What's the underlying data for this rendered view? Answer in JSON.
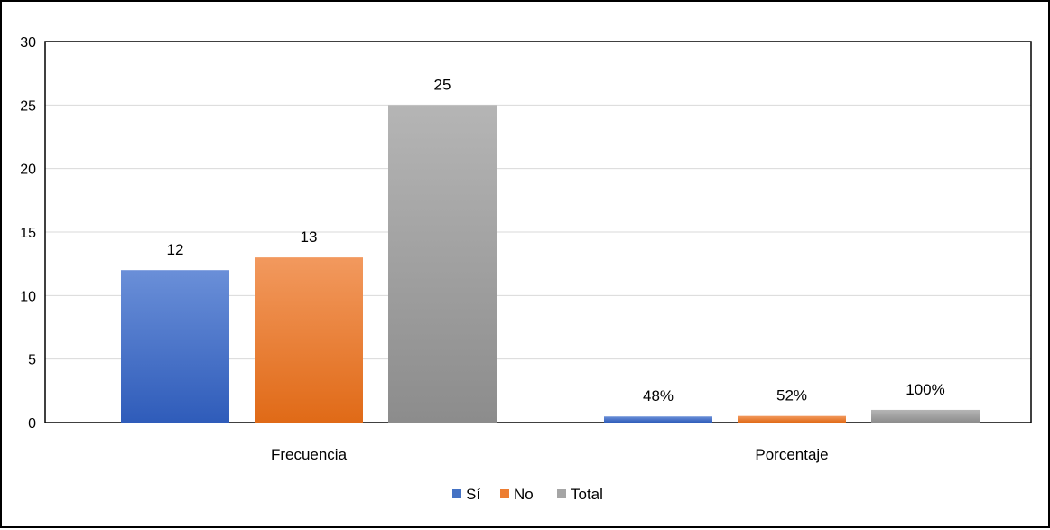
{
  "chart_data": {
    "type": "bar",
    "categories": [
      "Frecuencia",
      "Porcentaje"
    ],
    "series": [
      {
        "name": "Sí",
        "values": [
          12,
          0.48
        ],
        "labels": [
          "12",
          "48%"
        ],
        "color": "#4472C4"
      },
      {
        "name": "No",
        "values": [
          13,
          0.52
        ],
        "labels": [
          "13",
          "52%"
        ],
        "color": "#ED7D31"
      },
      {
        "name": "Total",
        "values": [
          25,
          1
        ],
        "labels": [
          "25",
          "100%"
        ],
        "color": "#A5A5A5"
      }
    ],
    "yticks": [
      "0",
      "5",
      "10",
      "15",
      "20",
      "25",
      "30"
    ],
    "ylim": [
      0,
      30
    ],
    "grid": true,
    "legend": "bottom"
  }
}
